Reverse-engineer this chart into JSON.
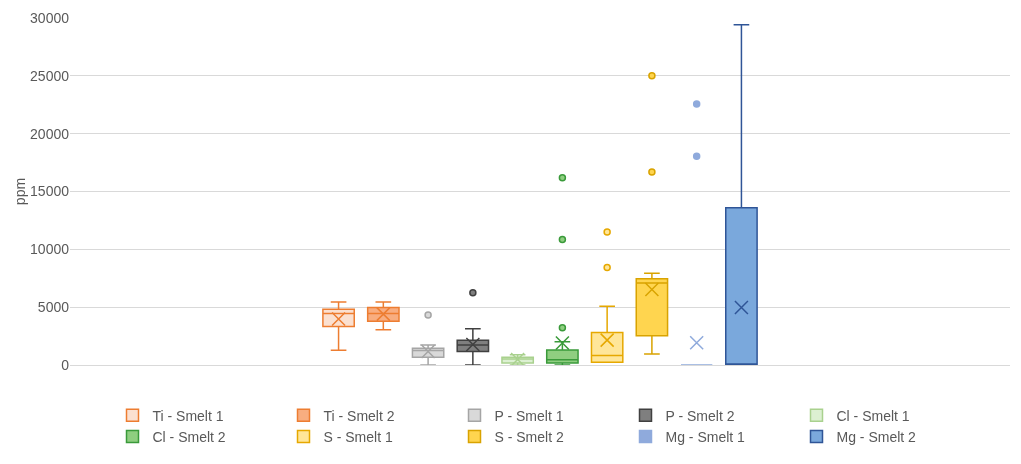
{
  "chart_data": {
    "type": "box",
    "ylabel": "ppm",
    "categories": [
      null
    ],
    "ylim": [
      0,
      30000
    ],
    "yticks": [
      0,
      5000,
      10000,
      15000,
      20000,
      25000,
      30000
    ],
    "grid": "y",
    "legend": "bottom",
    "tick_labels": "y",
    "series": [
      {
        "name": "Ti - Smelt 1",
        "color": "#ed7d31",
        "colors": [
          "#fbe0d0"
        ],
        "boxes": [
          {
            "low": 1270,
            "q1": 3330,
            "median": 4460,
            "q3": 4830,
            "high": 5450,
            "mean": 3980
          }
        ]
      },
      {
        "name": "Ti - Smelt 2",
        "color": "#ed7d31",
        "colors": [
          "#f8ad80"
        ],
        "boxes": [
          {
            "low": 3050,
            "q1": 3780,
            "median": 4460,
            "q3": 4970,
            "high": 5450,
            "mean": 4400
          }
        ]
      },
      {
        "name": "P - Smelt 1",
        "color": "#a5a5a5",
        "colors": [
          "#d9d9d9"
        ],
        "boxes": [
          {
            "low": 0,
            "q1": 680,
            "median": 1250,
            "q3": 1440,
            "high": 1720,
            "mean": 1160,
            "outliers": [
              4320
            ]
          }
        ]
      },
      {
        "name": "P - Smelt 2",
        "color": "#404040",
        "colors": [
          "#7f7f7f"
        ],
        "boxes": [
          {
            "low": 0,
            "q1": 1160,
            "median": 1720,
            "q3": 2150,
            "high": 3130,
            "mean": 1780,
            "outliers": [
              6240
            ]
          }
        ]
      },
      {
        "name": "Cl - Smelt 1",
        "color": "#a9d18e",
        "colors": [
          "#dcf0d2"
        ],
        "boxes": [
          {
            "low": 0,
            "q1": 170,
            "median": 510,
            "q3": 680,
            "high": 880,
            "mean": 480
          }
        ]
      },
      {
        "name": "Cl - Smelt 2",
        "color": "#3a9a3a",
        "colors": [
          "#8fce80"
        ],
        "boxes": [
          {
            "low": 0,
            "q1": 170,
            "median": 450,
            "q3": 1300,
            "high": 2000,
            "mean": 1900,
            "outliers": [
              3220,
              10850,
              16190
            ]
          }
        ]
      },
      {
        "name": "S - Smelt 1",
        "color": "#e6a800",
        "colors": [
          "#ffe699"
        ],
        "boxes": [
          {
            "low": 230,
            "q1": 230,
            "median": 820,
            "q3": 2800,
            "high": 5090,
            "mean": 2150,
            "outliers": [
              8420,
              11500
            ]
          }
        ]
      },
      {
        "name": "S - Smelt 2",
        "color": "#d9a300",
        "colors": [
          "#ffd54f"
        ],
        "boxes": [
          {
            "low": 960,
            "q1": 2520,
            "median": 7090,
            "q3": 7460,
            "high": 7940,
            "mean": 6530,
            "outliers": [
              16690,
              25000
            ]
          }
        ]
      },
      {
        "name": "Mg - Smelt 1",
        "color": "#8faadc",
        "colors": [
          "#8faadc"
        ],
        "boxes": [
          {
            "low": 0,
            "q1": 0,
            "median": 0,
            "q3": 0,
            "high": 0,
            "mean": 1920,
            "outliers": [
              18050,
              22570
            ]
          }
        ]
      },
      {
        "name": "Mg - Smelt 2",
        "color": "#2f5597",
        "colors": [
          "#7aa8dc"
        ],
        "boxes": [
          {
            "low": 0,
            "q1": 0,
            "median": 0,
            "q3": 13590,
            "high": 29410,
            "mean": 4970
          }
        ]
      }
    ]
  }
}
